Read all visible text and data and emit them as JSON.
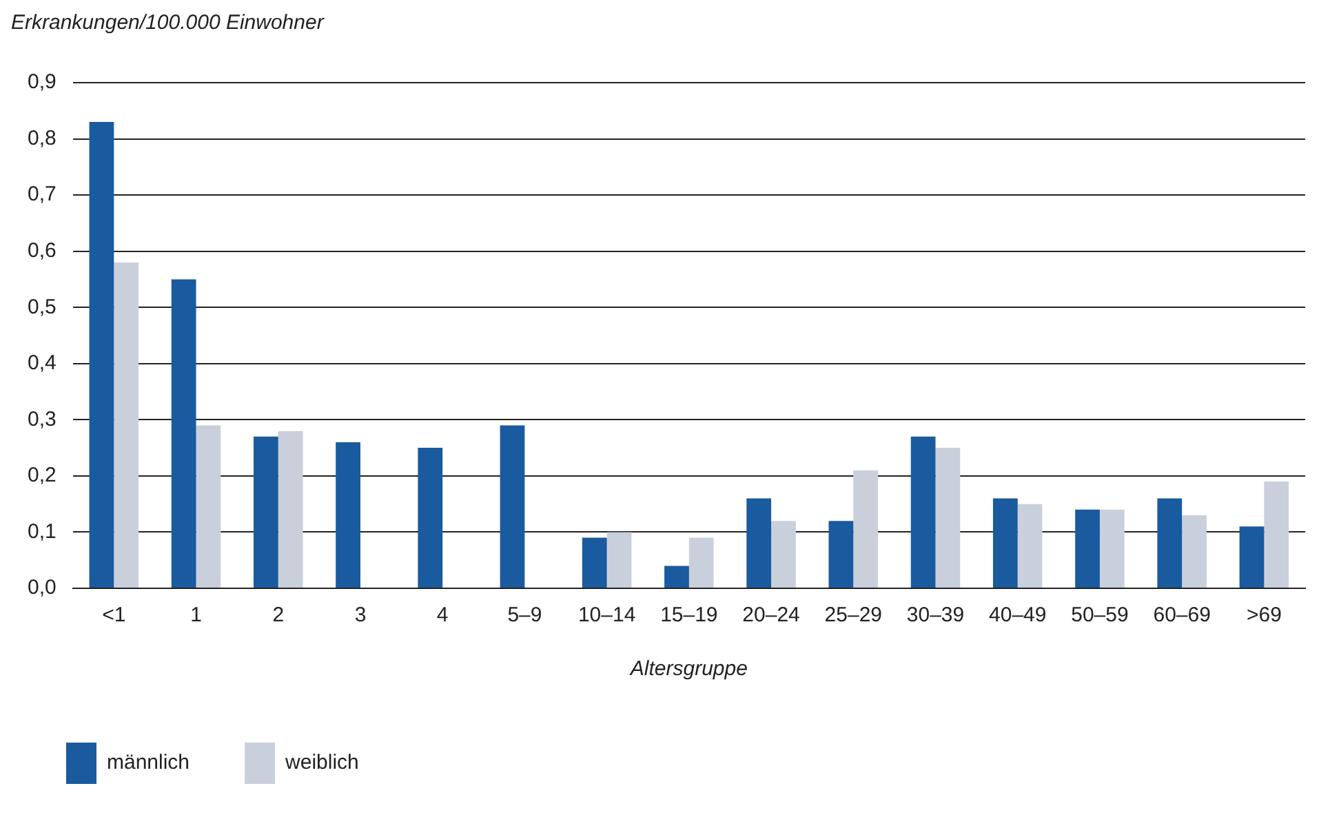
{
  "chart_data": {
    "type": "bar",
    "ylabel": "Erkrankungen/100.000 Einwohner",
    "xlabel": "Altersgruppe",
    "categories": [
      "<1",
      "1",
      "2",
      "3",
      "4",
      "5–9",
      "10–14",
      "15–19",
      "20–24",
      "25–29",
      "30–39",
      "40–49",
      "50–59",
      "60–69",
      ">69"
    ],
    "series": [
      {
        "name": "männlich",
        "color": "#1a5a9e",
        "values": [
          0.83,
          0.55,
          0.27,
          0.26,
          0.25,
          0.29,
          0.09,
          0.04,
          0.16,
          0.12,
          0.27,
          0.16,
          0.14,
          0.16,
          0.11
        ]
      },
      {
        "name": "weiblich",
        "color": "#c9d0dc",
        "values": [
          0.58,
          0.29,
          0.28,
          0,
          0,
          0,
          0.1,
          0.09,
          0.12,
          0.21,
          0.25,
          0.15,
          0.14,
          0.13,
          0.19
        ]
      }
    ],
    "ylim": [
      0,
      0.9
    ],
    "yticks": [
      {
        "value": 0,
        "label": "0,0"
      },
      {
        "value": 0.1,
        "label": "0,1"
      },
      {
        "value": 0.2,
        "label": "0,2"
      },
      {
        "value": 0.3,
        "label": "0,3"
      },
      {
        "value": 0.4,
        "label": "0,4"
      },
      {
        "value": 0.5,
        "label": "0,5"
      },
      {
        "value": 0.6,
        "label": "0,6"
      },
      {
        "value": 0.7,
        "label": "0,7"
      },
      {
        "value": 0.8,
        "label": "0,8"
      },
      {
        "value": 0.9,
        "label": "0,9"
      }
    ],
    "grid": "y",
    "legend": "bottom left"
  }
}
